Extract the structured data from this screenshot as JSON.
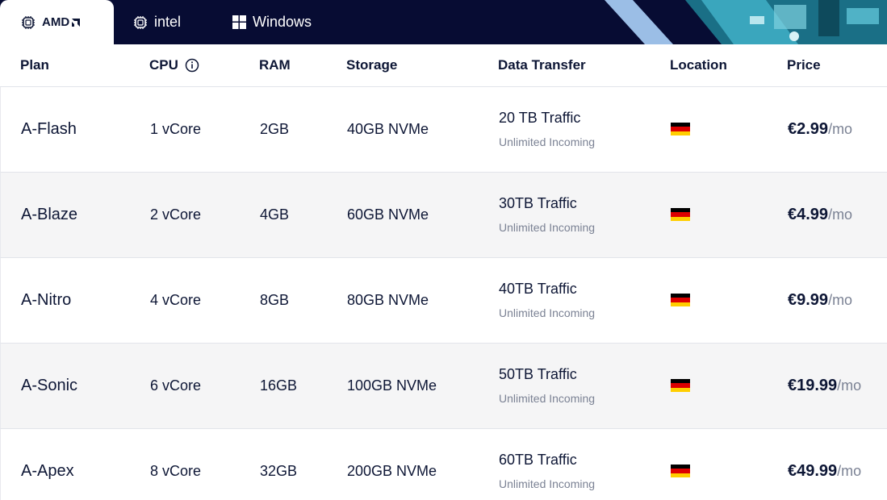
{
  "tabs": [
    {
      "label": "AMD",
      "icon": "chip-icon",
      "active": true
    },
    {
      "label": "intel",
      "icon": "chip-icon",
      "active": false
    },
    {
      "label": "Windows",
      "icon": "windows-icon",
      "active": false
    }
  ],
  "columns": {
    "plan": "Plan",
    "cpu": "CPU",
    "ram": "RAM",
    "storage": "Storage",
    "transfer": "Data Transfer",
    "location": "Location",
    "price": "Price"
  },
  "flag_colors": [
    "#000000",
    "#dd0000",
    "#ffce00"
  ],
  "plans": [
    {
      "name": "A-Flash",
      "cpu": "1 vCore",
      "ram": "2GB",
      "storage": "40GB NVMe",
      "traffic": "20 TB Traffic",
      "incoming": "Unlimited Incoming",
      "location": "Germany",
      "price": "€2.99",
      "period": "/mo"
    },
    {
      "name": "A-Blaze",
      "cpu": "2 vCore",
      "ram": "4GB",
      "storage": "60GB NVMe",
      "traffic": "30TB Traffic",
      "incoming": "Unlimited Incoming",
      "location": "Germany",
      "price": "€4.99",
      "period": "/mo"
    },
    {
      "name": "A-Nitro",
      "cpu": "4 vCore",
      "ram": "8GB",
      "storage": "80GB NVMe",
      "traffic": "40TB Traffic",
      "incoming": "Unlimited Incoming",
      "location": "Germany",
      "price": "€9.99",
      "period": "/mo"
    },
    {
      "name": "A-Sonic",
      "cpu": "6 vCore",
      "ram": "16GB",
      "storage": "100GB NVMe",
      "traffic": "50TB Traffic",
      "incoming": "Unlimited Incoming",
      "location": "Germany",
      "price": "€19.99",
      "period": "/mo"
    },
    {
      "name": "A-Apex",
      "cpu": "8 vCore",
      "ram": "32GB",
      "storage": "200GB NVMe",
      "traffic": "60TB Traffic",
      "incoming": "Unlimited Incoming",
      "location": "Germany",
      "price": "€49.99",
      "period": "/mo"
    }
  ]
}
